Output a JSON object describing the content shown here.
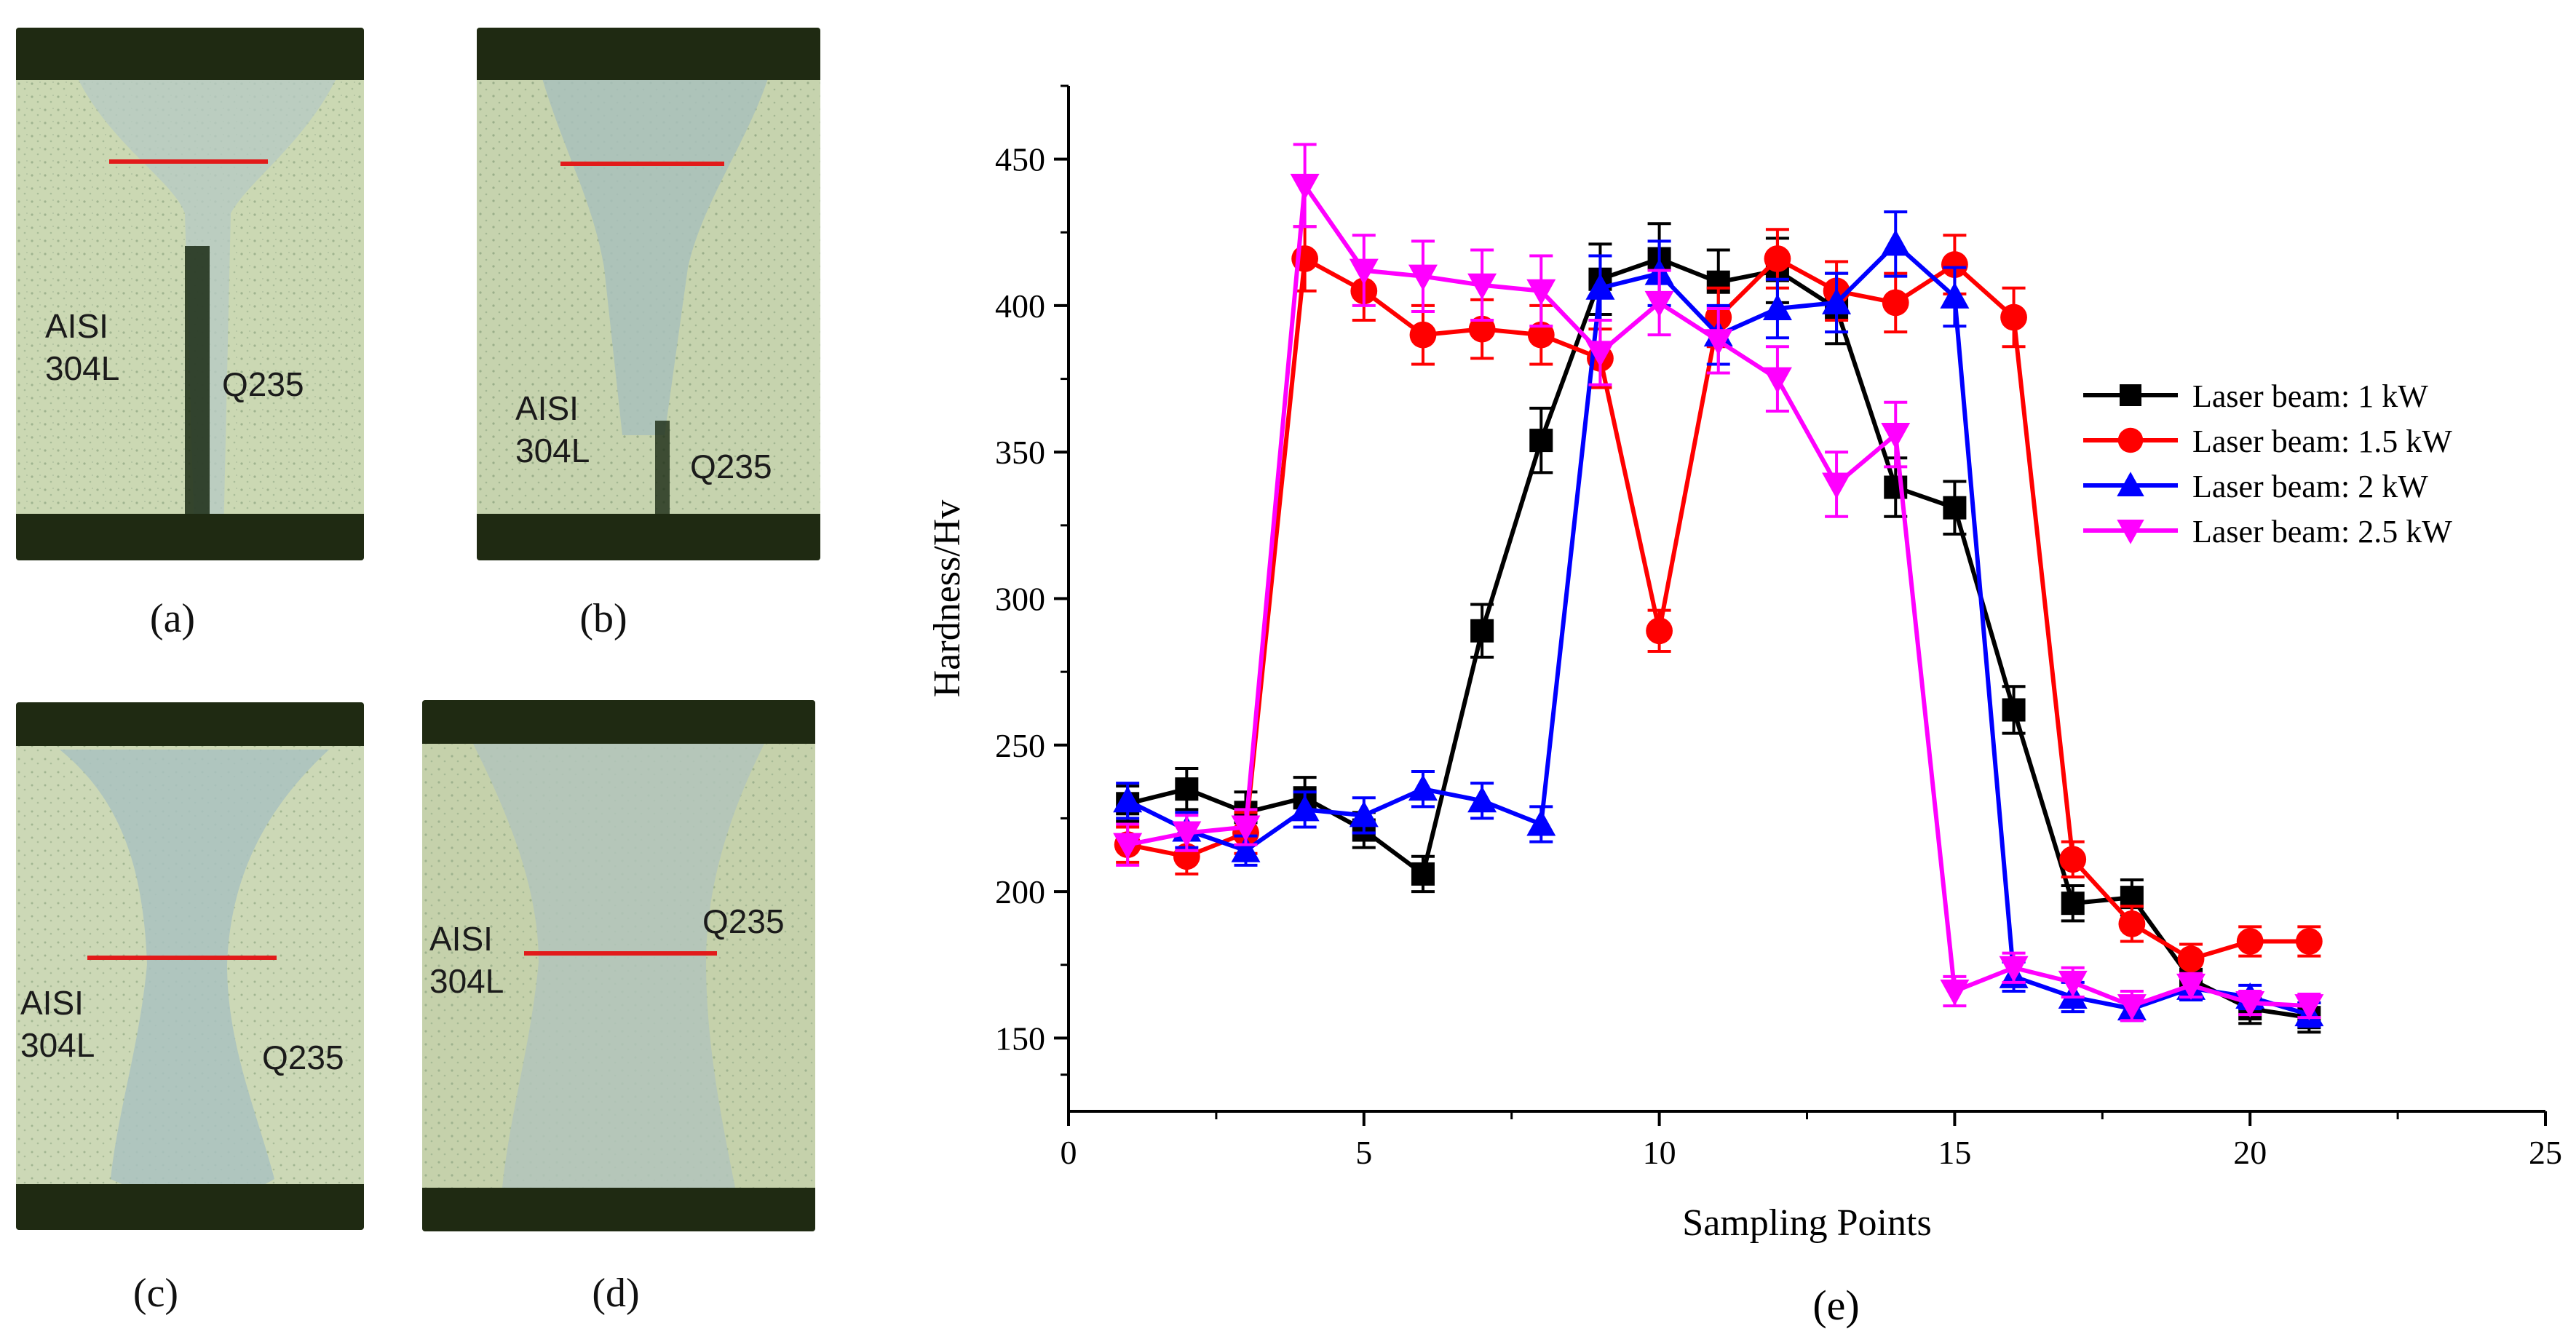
{
  "micrographs": [
    {
      "id": "a",
      "caption": "(a)",
      "base_label": "AISI\n304L",
      "steel_label": "Q235"
    },
    {
      "id": "b",
      "caption": "(b)",
      "base_label": "AISI\n304L",
      "steel_label": "Q235"
    },
    {
      "id": "c",
      "caption": "(c)",
      "base_label": "AISI\n304L",
      "steel_label": "Q235"
    },
    {
      "id": "d",
      "caption": "(d)",
      "base_label": "AISI\n304L",
      "steel_label": "Q235"
    }
  ],
  "colors": {
    "marker_line": "#e21a1a",
    "plate": "#c9d6b0",
    "weld": "#b4c9c6",
    "edge": "#1f2a12"
  },
  "chart_data": {
    "type": "line",
    "panel_label": "(e)",
    "title": "",
    "xlabel": "Sampling Points",
    "ylabel": "Hardness/Hv",
    "xlim": [
      0,
      25
    ],
    "ylim": [
      125,
      475
    ],
    "xticks": [
      0,
      5,
      10,
      15,
      20,
      25
    ],
    "yticks": [
      150,
      200,
      250,
      300,
      350,
      400,
      450
    ],
    "grid": false,
    "legend_position": "right",
    "series": [
      {
        "name": "Laser beam: 1 kW",
        "color": "#000000",
        "marker": "square",
        "x": [
          1,
          2,
          3,
          4,
          5,
          6,
          7,
          8,
          9,
          10,
          11,
          12,
          13,
          14,
          15,
          16,
          17,
          18,
          19,
          20,
          21
        ],
        "y": [
          230,
          235,
          227,
          232,
          221,
          206,
          289,
          354,
          409,
          416,
          408,
          412,
          399,
          338,
          331,
          262,
          196,
          198,
          170,
          160,
          157
        ],
        "err": [
          6,
          7,
          7,
          7,
          6,
          6,
          9,
          11,
          12,
          12,
          11,
          11,
          12,
          10,
          9,
          8,
          6,
          6,
          6,
          5,
          5
        ]
      },
      {
        "name": "Laser beam: 1.5 kW",
        "color": "#ff0000",
        "marker": "circle",
        "x": [
          1,
          2,
          3,
          4,
          5,
          6,
          7,
          8,
          9,
          10,
          11,
          12,
          13,
          14,
          15,
          16,
          17,
          18,
          19,
          20,
          21
        ],
        "y": [
          216,
          212,
          220,
          416,
          405,
          390,
          392,
          390,
          382,
          289,
          396,
          416,
          405,
          401,
          414,
          396,
          211,
          189,
          177,
          183,
          183
        ],
        "err": [
          6,
          6,
          7,
          11,
          10,
          10,
          10,
          10,
          10,
          7,
          10,
          10,
          10,
          10,
          10,
          10,
          6,
          6,
          5,
          5,
          5
        ]
      },
      {
        "name": "Laser beam: 2 kW",
        "color": "#0000ff",
        "marker": "triangle-up",
        "x": [
          1,
          2,
          3,
          4,
          5,
          6,
          7,
          8,
          9,
          10,
          11,
          12,
          13,
          14,
          15,
          16,
          17,
          18,
          19,
          20,
          21
        ],
        "y": [
          231,
          221,
          214,
          228,
          226,
          235,
          231,
          223,
          406,
          411,
          390,
          399,
          401,
          421,
          403,
          171,
          164,
          160,
          167,
          164,
          158
        ],
        "err": [
          6,
          6,
          5,
          6,
          6,
          6,
          6,
          6,
          11,
          11,
          10,
          10,
          10,
          11,
          10,
          5,
          5,
          4,
          4,
          4,
          4
        ]
      },
      {
        "name": "Laser beam: 2.5 kW",
        "color": "#ff00ff",
        "marker": "triangle-down",
        "x": [
          1,
          2,
          3,
          4,
          5,
          6,
          7,
          8,
          9,
          10,
          11,
          12,
          13,
          14,
          15,
          16,
          17,
          18,
          19,
          20,
          21
        ],
        "y": [
          216,
          220,
          222,
          441,
          412,
          410,
          407,
          405,
          384,
          401,
          388,
          375,
          339,
          356,
          166,
          174,
          169,
          161,
          168,
          162,
          161
        ],
        "err": [
          7,
          6,
          6,
          14,
          12,
          12,
          12,
          12,
          11,
          11,
          11,
          11,
          11,
          11,
          5,
          5,
          5,
          5,
          4,
          4,
          4
        ]
      }
    ]
  }
}
